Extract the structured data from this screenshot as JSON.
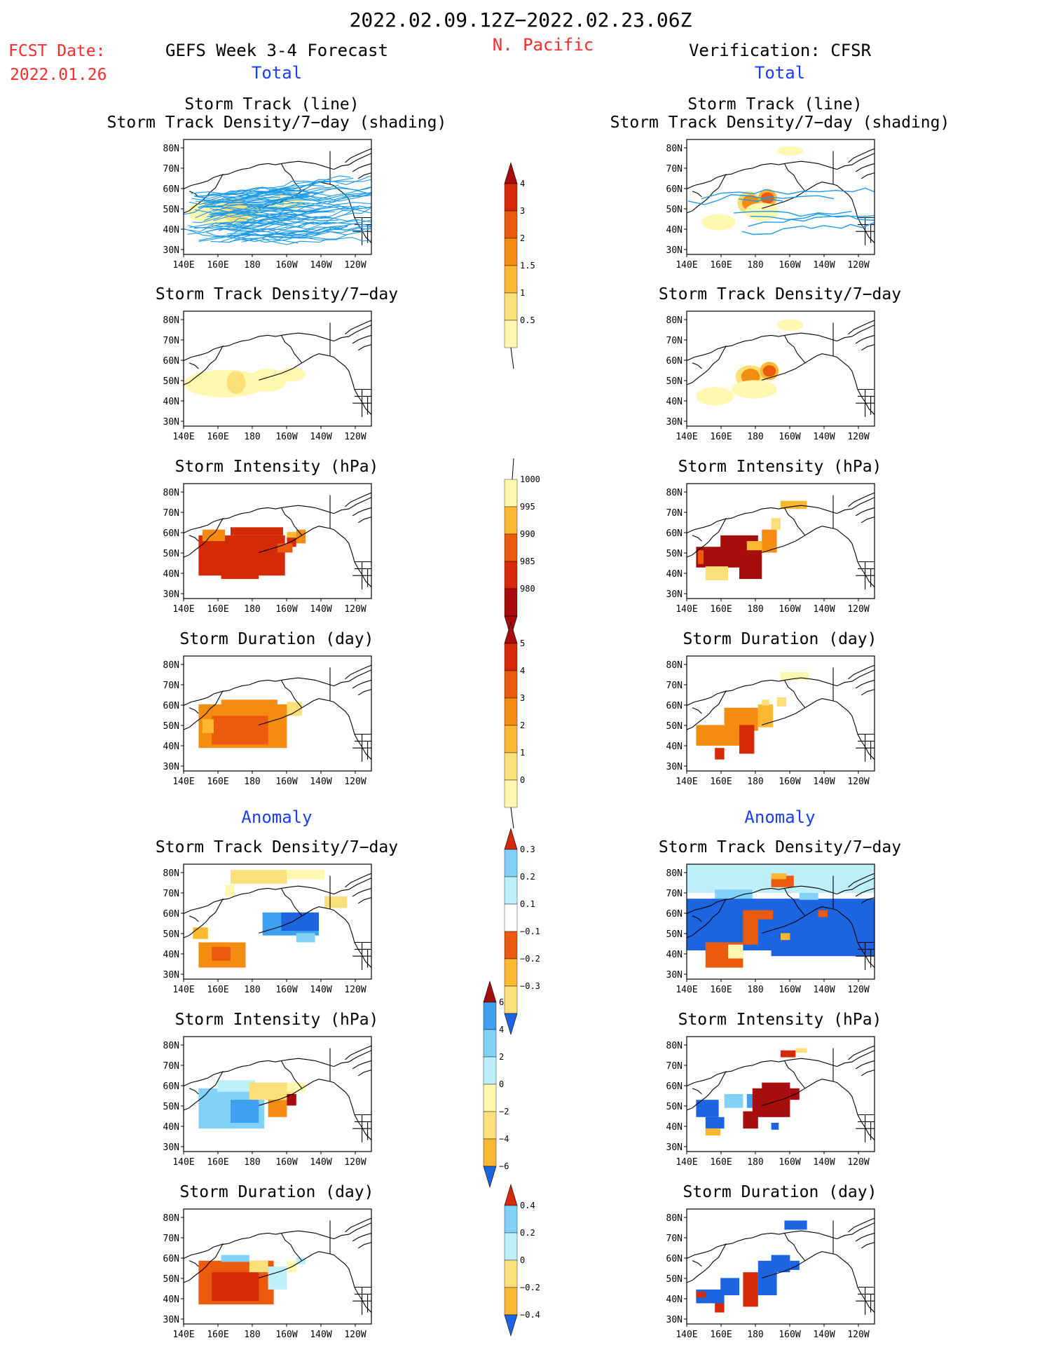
{
  "header": {
    "date_range": "2022.02.09.12Z−2022.02.23.06Z",
    "fcst_label": "FCST Date:",
    "fcst_date": "2022.01.26",
    "forecast_title": "GEFS Week 3-4 Forecast",
    "region": "N. Pacific",
    "verification_title": "Verification: CFSR",
    "section_total": "Total",
    "section_anomaly": "Anomaly"
  },
  "panel_titles": {
    "track_line": "Storm Track (line)",
    "track_density_shading": "Storm Track Density/7−day (shading)",
    "track_density": "Storm Track Density/7−day",
    "intensity": "Storm Intensity (hPa)",
    "duration": "Storm Duration (day)"
  },
  "axes": {
    "lat_labels": [
      "80N",
      "70N",
      "60N",
      "50N",
      "40N",
      "30N"
    ],
    "lon_labels": [
      "140E",
      "160E",
      "180",
      "160W",
      "140W",
      "120W"
    ]
  },
  "colorbars": [
    {
      "id": "density",
      "labels": [
        "4",
        "3",
        "2",
        "1.5",
        "1",
        "0.5"
      ]
    },
    {
      "id": "intensity",
      "labels": [
        "1000",
        "995",
        "990",
        "985",
        "980"
      ]
    },
    {
      "id": "duration",
      "labels": [
        "5",
        "4",
        "3",
        "2",
        "1",
        "0"
      ]
    },
    {
      "id": "density-anomaly",
      "labels": [
        "0.3",
        "0.2",
        "0.1",
        "−0.1",
        "−0.2",
        "−0.3"
      ]
    },
    {
      "id": "intensity-anomaly",
      "labels": [
        "6",
        "4",
        "2",
        "0",
        "−2",
        "−4",
        "−6"
      ]
    },
    {
      "id": "duration-anomaly",
      "labels": [
        "0.4",
        "0.2",
        "0",
        "−0.2",
        "−0.4"
      ]
    }
  ],
  "colors": {
    "red_text": "#ff2a2a",
    "blue_text": "#1a3cff",
    "track_line": "#1e9ae8",
    "palette_warm": [
      "#fff8b0",
      "#fbe07a",
      "#fbb830",
      "#f58c12",
      "#ec5a0e",
      "#d42a08",
      "#a80d0d"
    ],
    "palette_cool": [
      "#bdf0fb",
      "#82d2f8",
      "#3ea0f0",
      "#1c64e0"
    ]
  }
}
